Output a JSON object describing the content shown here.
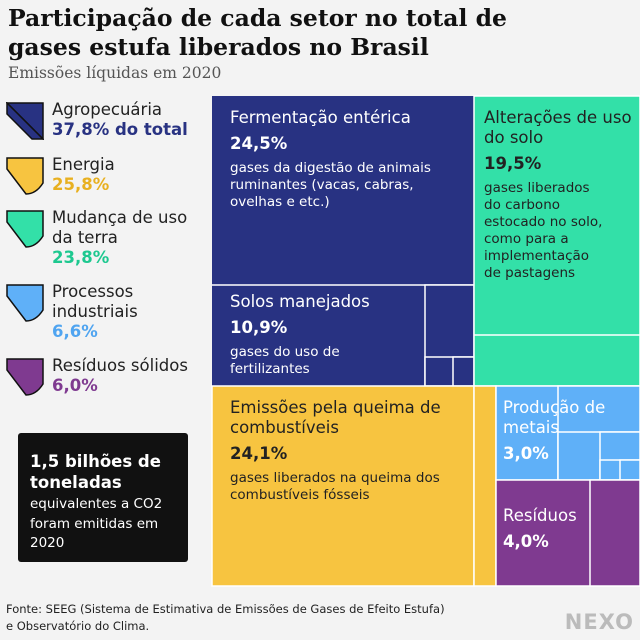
{
  "title": "Participação de cada setor no total de gases estufa liberados no Brasil",
  "subtitle": "Emissões líquidas em 2020",
  "legend": [
    {
      "name": "Agropecuária",
      "pct": "37,8% do total",
      "color": "#283282"
    },
    {
      "name": "Energia",
      "pct": "25,8%",
      "color": "#f7c440"
    },
    {
      "name": "Mudança de uso da terra",
      "pct": "23,8%",
      "color": "#33e0a8"
    },
    {
      "name": "Processos industriais",
      "pct": "6,6%",
      "color": "#5fb0f8"
    },
    {
      "name": "Resíduos sólidos",
      "pct": "6,0%",
      "color": "#7f3a90"
    }
  ],
  "total_box": {
    "headline": "1,5 bilhões de toneladas",
    "text": "equivalentes a CO2 foram emitidas em 2020"
  },
  "source": "Fonte: SEEG (Sistema de Estimativa de Emissões de Gases de Efeito Estufa) e Observatório do Clima.",
  "logo": "NEXO",
  "chart_data": {
    "type": "treemap",
    "total_label": "1,5 bilhões de toneladas",
    "groups": [
      {
        "sector": "Agropecuária",
        "value": 37.8,
        "color": "#283282",
        "children": [
          {
            "name": "Fermentação entérica",
            "value": 24.5,
            "label": "24,5%",
            "desc": "gases da digestão de animais ruminantes (vacas, cabras, ovelhas e etc.)"
          },
          {
            "name": "Solos manejados",
            "value": 10.9,
            "label": "10,9%",
            "desc": "gases do uso de fertilizantes"
          }
        ]
      },
      {
        "sector": "Mudança de uso da terra",
        "value": 23.8,
        "color": "#33e0a8",
        "children": [
          {
            "name": "Alterações de uso do solo",
            "value": 19.5,
            "label": "19,5%",
            "desc": "gases liberados do carbono estocado no solo, como para a implementação de pastagens"
          }
        ]
      },
      {
        "sector": "Energia",
        "value": 25.8,
        "color": "#f7c440",
        "children": [
          {
            "name": "Emissões pela queima de combustíveis",
            "value": 24.1,
            "label": "24,1%",
            "desc": "gases liberados na queima dos combustíveis fósseis"
          }
        ]
      },
      {
        "sector": "Processos industriais",
        "value": 6.6,
        "color": "#5fb0f8",
        "children": [
          {
            "name": "Produção de metais",
            "value": 3.0,
            "label": "3,0%",
            "desc": ""
          }
        ]
      },
      {
        "sector": "Resíduos sólidos",
        "value": 6.0,
        "color": "#7f3a90",
        "children": [
          {
            "name": "Resíduos",
            "value": 4.0,
            "label": "4,0%",
            "desc": ""
          }
        ]
      }
    ]
  }
}
